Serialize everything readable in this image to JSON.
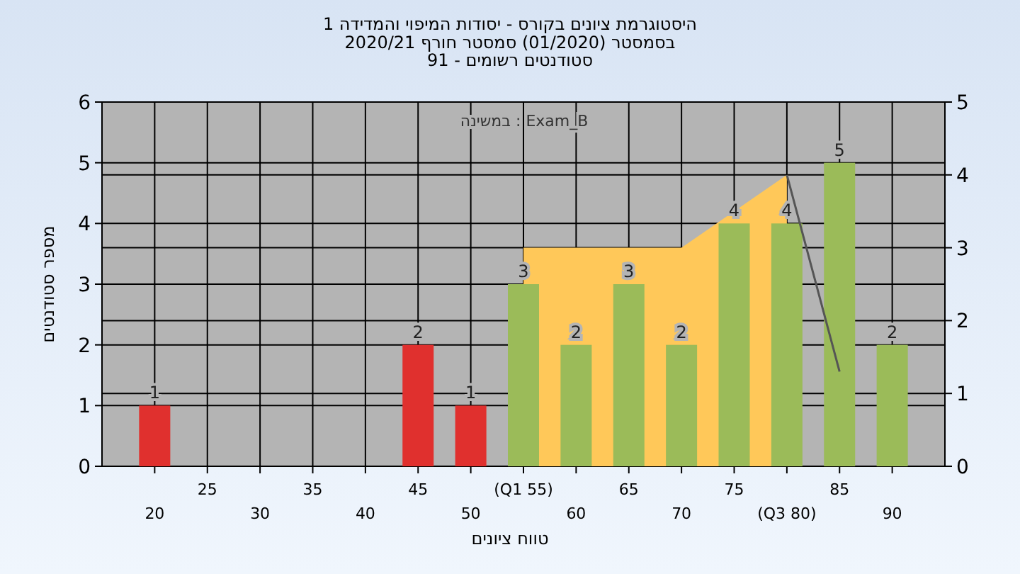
{
  "chart_data": {
    "type": "bar",
    "title": "היסטוגרמת ציונים בקורס - יסודות המיפוי והמדידה 1",
    "subtitle": "בסמסטר (01/2020) סמסטר חורף 2020/21\nסטודנטים רשומים - 91",
    "xlabel": "טווח ציונים",
    "ylabel": "מספר סטודנטים",
    "annotations": [
      "במשינה : Exam_B"
    ],
    "categories": [
      "20",
      "25",
      "30",
      "35",
      "40",
      "45",
      "50",
      "(Q1 55)",
      "60",
      "65",
      "70",
      "75",
      "(Q3 80)",
      "85",
      "90"
    ],
    "series": [
      {
        "colors": [
          "#e0302e",
          "#e0302e",
          "#e0302e",
          "#e0302e",
          "#e0302e",
          "#e0302e",
          "#e0302e",
          "#9bbb59",
          "#9bbb59",
          "#9bbb59",
          "#9bbb59",
          "#9bbb59",
          "#9bbb59",
          "#9bbb59",
          "#9bbb59"
        ],
        "values": [
          1,
          0,
          0,
          0,
          0,
          2,
          1,
          3,
          2,
          3,
          2,
          4,
          4,
          5,
          2
        ],
        "value_labels": [
          "1",
          null,
          null,
          null,
          null,
          "2",
          "1",
          "3",
          "2",
          "3",
          "2",
          "4",
          "4",
          "5",
          "2"
        ]
      },
      {
        "type": "area",
        "axis": "y2",
        "color": "#ffc859",
        "values": [
          null,
          null,
          null,
          null,
          null,
          null,
          null,
          3,
          3,
          null,
          3,
          null,
          4,
          null,
          null
        ]
      },
      {
        "type": "line",
        "axis": "y2",
        "color": "#555555",
        "values": [
          null,
          null,
          null,
          null,
          null,
          null,
          null,
          null,
          null,
          null,
          null,
          null,
          4,
          1.3,
          null
        ]
      }
    ],
    "ylim": [
      0,
      6
    ],
    "yticks": [
      0,
      1,
      2,
      3,
      4,
      5,
      6
    ],
    "y2lim": [
      0,
      5
    ],
    "y2ticks": [
      0,
      1,
      2,
      3,
      4,
      5
    ],
    "grid": true
  }
}
